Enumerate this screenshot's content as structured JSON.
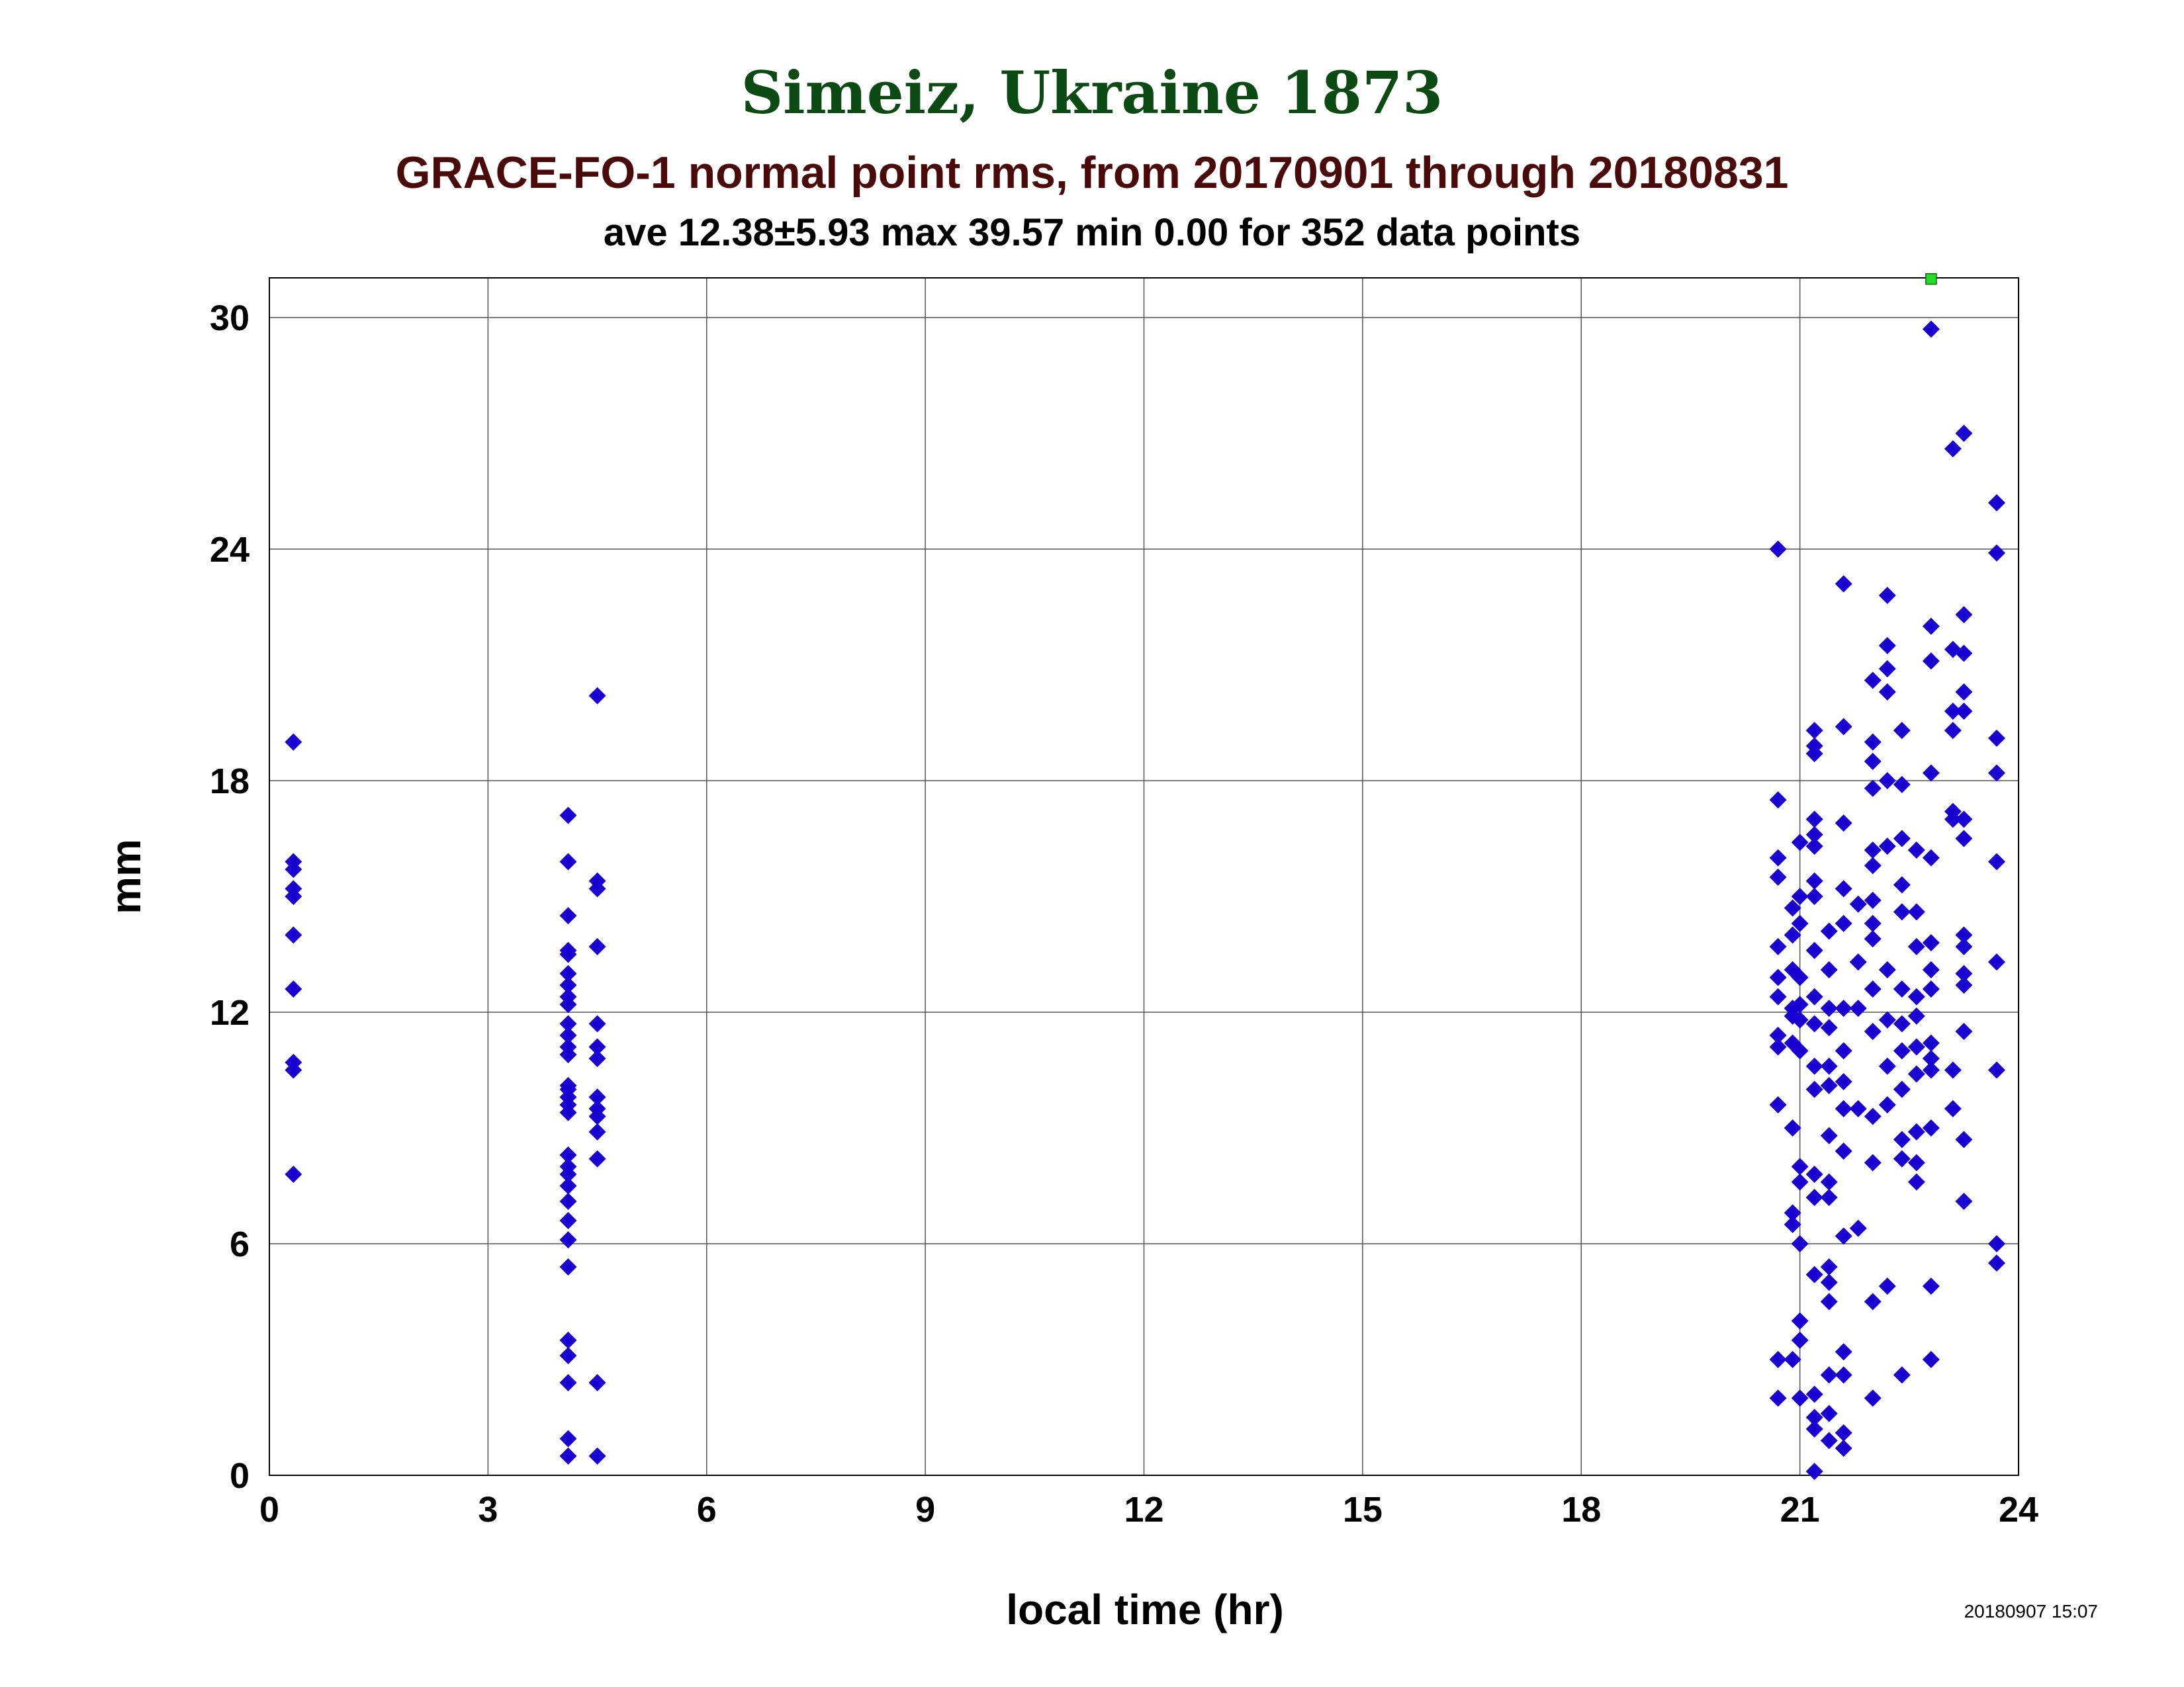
{
  "colors": {
    "title": "#0b4a12",
    "subtitle": "#4a0a0a",
    "points": "#1a00d0",
    "marker": "#22dd22",
    "grid": "#555555"
  },
  "header": {
    "title": "Simeiz, Ukraine 1873",
    "subtitle": "GRACE-FO-1 normal point rms, from 20170901 through 20180831",
    "stats": "ave 12.38±5.93 max 39.57 min 0.00 for 352 data points"
  },
  "footer": {
    "timestamp": "20180907 15:07"
  },
  "chart_data": {
    "type": "scatter",
    "xlabel": "local time (hr)",
    "ylabel": "mm",
    "xlim": [
      0,
      24
    ],
    "ylim": [
      0,
      31
    ],
    "xticks": [
      0,
      3,
      6,
      9,
      12,
      15,
      18,
      21,
      24
    ],
    "yticks": [
      0,
      6,
      12,
      18,
      24,
      30
    ],
    "grid": true,
    "series": [
      {
        "marker": "diamond",
        "color": "#1a00d0",
        "points": [
          [
            0.33,
            19.0
          ],
          [
            0.33,
            15.9
          ],
          [
            0.33,
            15.7
          ],
          [
            0.33,
            15.2
          ],
          [
            0.33,
            15.0
          ],
          [
            0.33,
            14.0
          ],
          [
            0.33,
            12.6
          ],
          [
            0.33,
            10.7
          ],
          [
            0.33,
            10.5
          ],
          [
            0.33,
            7.8
          ],
          [
            4.1,
            17.1
          ],
          [
            4.1,
            15.9
          ],
          [
            4.1,
            14.5
          ],
          [
            4.1,
            13.6
          ],
          [
            4.1,
            13.5
          ],
          [
            4.1,
            13.0
          ],
          [
            4.1,
            12.7
          ],
          [
            4.1,
            12.4
          ],
          [
            4.1,
            12.2
          ],
          [
            4.1,
            11.7
          ],
          [
            4.1,
            11.4
          ],
          [
            4.1,
            11.1
          ],
          [
            4.1,
            10.9
          ],
          [
            4.1,
            10.1
          ],
          [
            4.1,
            10.0
          ],
          [
            4.1,
            9.8
          ],
          [
            4.1,
            9.6
          ],
          [
            4.1,
            9.4
          ],
          [
            4.1,
            8.3
          ],
          [
            4.1,
            8.0
          ],
          [
            4.1,
            7.8
          ],
          [
            4.1,
            7.5
          ],
          [
            4.1,
            7.1
          ],
          [
            4.1,
            6.6
          ],
          [
            4.1,
            6.1
          ],
          [
            4.1,
            5.4
          ],
          [
            4.1,
            3.5
          ],
          [
            4.1,
            3.1
          ],
          [
            4.1,
            2.4
          ],
          [
            4.1,
            0.95
          ],
          [
            4.1,
            0.5
          ],
          [
            4.5,
            20.2
          ],
          [
            4.5,
            15.4
          ],
          [
            4.5,
            15.2
          ],
          [
            4.5,
            13.7
          ],
          [
            4.5,
            11.7
          ],
          [
            4.5,
            11.1
          ],
          [
            4.5,
            10.8
          ],
          [
            4.5,
            9.8
          ],
          [
            4.5,
            9.5
          ],
          [
            4.5,
            9.3
          ],
          [
            4.5,
            8.9
          ],
          [
            4.5,
            8.2
          ],
          [
            4.5,
            2.4
          ],
          [
            4.5,
            0.5
          ],
          [
            20.7,
            24.0
          ],
          [
            20.7,
            17.5
          ],
          [
            20.7,
            16.0
          ],
          [
            20.7,
            15.5
          ],
          [
            20.7,
            13.7
          ],
          [
            20.7,
            12.9
          ],
          [
            20.7,
            12.4
          ],
          [
            20.7,
            11.4
          ],
          [
            20.7,
            11.1
          ],
          [
            20.7,
            9.6
          ],
          [
            20.7,
            3.0
          ],
          [
            20.7,
            2.0
          ],
          [
            20.9,
            14.7
          ],
          [
            20.9,
            14.0
          ],
          [
            20.9,
            13.1
          ],
          [
            20.9,
            12.1
          ],
          [
            20.9,
            11.9
          ],
          [
            20.9,
            11.2
          ],
          [
            20.9,
            9.0
          ],
          [
            20.9,
            6.8
          ],
          [
            20.9,
            6.5
          ],
          [
            20.9,
            3.0
          ],
          [
            21.0,
            16.4
          ],
          [
            21.0,
            15.0
          ],
          [
            21.0,
            14.3
          ],
          [
            21.0,
            12.9
          ],
          [
            21.0,
            12.2
          ],
          [
            21.0,
            11.8
          ],
          [
            21.0,
            11.0
          ],
          [
            21.0,
            8.0
          ],
          [
            21.0,
            7.6
          ],
          [
            21.0,
            6.0
          ],
          [
            21.0,
            4.0
          ],
          [
            21.0,
            3.5
          ],
          [
            21.0,
            2.0
          ],
          [
            21.2,
            19.3
          ],
          [
            21.2,
            18.9
          ],
          [
            21.2,
            18.7
          ],
          [
            21.2,
            17.0
          ],
          [
            21.2,
            16.6
          ],
          [
            21.2,
            16.3
          ],
          [
            21.2,
            15.4
          ],
          [
            21.2,
            15.0
          ],
          [
            21.2,
            13.6
          ],
          [
            21.2,
            12.4
          ],
          [
            21.2,
            11.7
          ],
          [
            21.2,
            10.6
          ],
          [
            21.2,
            10.0
          ],
          [
            21.2,
            7.8
          ],
          [
            21.2,
            7.2
          ],
          [
            21.2,
            5.2
          ],
          [
            21.2,
            2.1
          ],
          [
            21.2,
            1.5
          ],
          [
            21.2,
            1.2
          ],
          [
            21.2,
            0.1
          ],
          [
            21.4,
            14.1
          ],
          [
            21.4,
            13.1
          ],
          [
            21.4,
            12.1
          ],
          [
            21.4,
            11.6
          ],
          [
            21.4,
            10.6
          ],
          [
            21.4,
            10.1
          ],
          [
            21.4,
            8.8
          ],
          [
            21.4,
            7.6
          ],
          [
            21.4,
            7.2
          ],
          [
            21.4,
            5.4
          ],
          [
            21.4,
            5.0
          ],
          [
            21.4,
            4.5
          ],
          [
            21.4,
            2.6
          ],
          [
            21.4,
            1.6
          ],
          [
            21.4,
            0.9
          ],
          [
            21.6,
            19.4
          ],
          [
            21.6,
            16.9
          ],
          [
            21.6,
            15.2
          ],
          [
            21.6,
            14.3
          ],
          [
            21.6,
            12.1
          ],
          [
            21.6,
            11.0
          ],
          [
            21.6,
            10.2
          ],
          [
            21.6,
            9.5
          ],
          [
            21.6,
            8.4
          ],
          [
            21.6,
            6.2
          ],
          [
            21.6,
            3.2
          ],
          [
            21.6,
            2.6
          ],
          [
            21.6,
            1.1
          ],
          [
            21.6,
            0.7
          ],
          [
            21.6,
            23.1
          ],
          [
            21.8,
            14.8
          ],
          [
            21.8,
            13.3
          ],
          [
            21.8,
            12.1
          ],
          [
            21.8,
            9.5
          ],
          [
            21.8,
            6.4
          ],
          [
            22.0,
            20.6
          ],
          [
            22.0,
            19.0
          ],
          [
            22.0,
            18.5
          ],
          [
            22.0,
            17.8
          ],
          [
            22.0,
            16.2
          ],
          [
            22.0,
            15.8
          ],
          [
            22.0,
            14.9
          ],
          [
            22.0,
            14.3
          ],
          [
            22.0,
            13.9
          ],
          [
            22.0,
            12.6
          ],
          [
            22.0,
            11.5
          ],
          [
            22.0,
            9.3
          ],
          [
            22.0,
            8.1
          ],
          [
            22.0,
            4.5
          ],
          [
            22.0,
            2.0
          ],
          [
            22.2,
            22.8
          ],
          [
            22.2,
            21.5
          ],
          [
            22.2,
            20.9
          ],
          [
            22.2,
            20.3
          ],
          [
            22.2,
            18.0
          ],
          [
            22.2,
            16.3
          ],
          [
            22.2,
            13.1
          ],
          [
            22.2,
            11.8
          ],
          [
            22.2,
            10.6
          ],
          [
            22.2,
            9.6
          ],
          [
            22.2,
            4.9
          ],
          [
            22.4,
            19.3
          ],
          [
            22.4,
            17.9
          ],
          [
            22.4,
            16.5
          ],
          [
            22.4,
            15.3
          ],
          [
            22.4,
            14.6
          ],
          [
            22.4,
            12.6
          ],
          [
            22.4,
            11.7
          ],
          [
            22.4,
            11.0
          ],
          [
            22.4,
            10.0
          ],
          [
            22.4,
            8.7
          ],
          [
            22.4,
            8.2
          ],
          [
            22.4,
            2.6
          ],
          [
            22.6,
            16.2
          ],
          [
            22.6,
            14.6
          ],
          [
            22.6,
            13.7
          ],
          [
            22.6,
            12.4
          ],
          [
            22.6,
            11.9
          ],
          [
            22.6,
            11.1
          ],
          [
            22.6,
            10.4
          ],
          [
            22.6,
            8.9
          ],
          [
            22.6,
            8.1
          ],
          [
            22.6,
            7.6
          ],
          [
            22.8,
            29.7
          ],
          [
            22.8,
            22.0
          ],
          [
            22.8,
            21.1
          ],
          [
            22.8,
            18.2
          ],
          [
            22.8,
            16.0
          ],
          [
            22.8,
            13.8
          ],
          [
            22.8,
            13.1
          ],
          [
            22.8,
            12.6
          ],
          [
            22.8,
            11.2
          ],
          [
            22.8,
            10.8
          ],
          [
            22.8,
            10.5
          ],
          [
            22.8,
            9.0
          ],
          [
            22.8,
            4.9
          ],
          [
            22.8,
            3.0
          ],
          [
            23.1,
            26.6
          ],
          [
            23.1,
            21.4
          ],
          [
            23.1,
            19.8
          ],
          [
            23.1,
            19.3
          ],
          [
            23.1,
            17.2
          ],
          [
            23.1,
            17.0
          ],
          [
            23.1,
            10.5
          ],
          [
            23.1,
            9.5
          ],
          [
            23.25,
            27.0
          ],
          [
            23.25,
            22.3
          ],
          [
            23.25,
            21.3
          ],
          [
            23.25,
            20.3
          ],
          [
            23.25,
            19.8
          ],
          [
            23.25,
            17.0
          ],
          [
            23.25,
            16.5
          ],
          [
            23.25,
            14.0
          ],
          [
            23.25,
            13.7
          ],
          [
            23.25,
            13.0
          ],
          [
            23.25,
            12.7
          ],
          [
            23.25,
            11.5
          ],
          [
            23.25,
            8.7
          ],
          [
            23.25,
            7.1
          ],
          [
            23.7,
            25.2
          ],
          [
            23.7,
            23.9
          ],
          [
            23.7,
            19.1
          ],
          [
            23.7,
            18.2
          ],
          [
            23.7,
            15.9
          ],
          [
            23.7,
            13.3
          ],
          [
            23.7,
            10.5
          ],
          [
            23.7,
            6.0
          ],
          [
            23.7,
            5.5
          ]
        ]
      },
      {
        "marker": "square",
        "color": "#22dd22",
        "points": [
          [
            22.8,
            31
          ]
        ]
      }
    ]
  }
}
